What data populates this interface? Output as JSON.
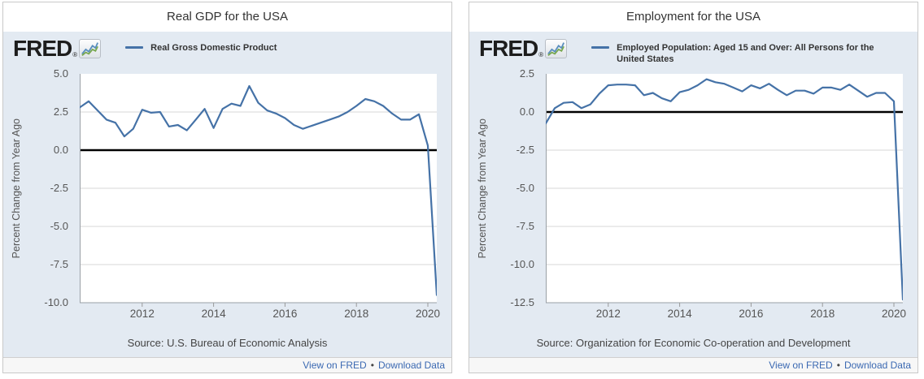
{
  "branding": {
    "logo_text": "FRED",
    "reg_mark": "®"
  },
  "footer": {
    "view_link": "View on FRED",
    "separator": "•",
    "download_link": "Download Data"
  },
  "chart_data": [
    {
      "type": "line",
      "title": "Real GDP for the USA",
      "legend": "Real Gross Domestic Product",
      "ylabel": "Percent Change from Year Ago",
      "source": "Source: U.S. Bureau of Economic Analysis",
      "line_color": "#4572a7",
      "zero_line_color": "#000000",
      "plot_bg": "#ffffff",
      "region_bg": "#e3eaf2",
      "grid": true,
      "legend_position": "top-left",
      "ylim": [
        -10,
        5
      ],
      "y_ticks": [
        5.0,
        2.5,
        0.0,
        -2.5,
        -5.0,
        -7.5,
        -10.0
      ],
      "x_ticks": [
        2012,
        2014,
        2016,
        2018,
        2020
      ],
      "x_range": [
        2010.25,
        2020.25
      ],
      "frequency": "quarterly",
      "period_start": "2010 Q2",
      "period_end": "2020 Q2",
      "values": [
        2.8,
        3.2,
        2.6,
        2.0,
        1.8,
        0.9,
        1.4,
        2.65,
        2.45,
        2.5,
        1.55,
        1.65,
        1.3,
        2.0,
        2.7,
        1.45,
        2.7,
        3.05,
        2.9,
        4.2,
        3.1,
        2.6,
        2.4,
        2.1,
        1.65,
        1.4,
        1.6,
        1.8,
        2.0,
        2.2,
        2.5,
        2.9,
        3.35,
        3.2,
        2.9,
        2.4,
        2.0,
        2.0,
        2.35,
        0.3,
        -9.5
      ]
    },
    {
      "type": "line",
      "title": "Employment for the USA",
      "legend": "Employed Population: Aged 15 and Over: All Persons for the United States",
      "ylabel": "Percent Change from Year Ago",
      "source": "Source: Organization for Economic Co-operation and Development",
      "line_color": "#4572a7",
      "zero_line_color": "#000000",
      "plot_bg": "#ffffff",
      "region_bg": "#e3eaf2",
      "grid": true,
      "legend_position": "top-left",
      "ylim": [
        -12.5,
        2.5
      ],
      "y_ticks": [
        2.5,
        0.0,
        -2.5,
        -5.0,
        -7.5,
        -10.0,
        -12.5
      ],
      "x_ticks": [
        2012,
        2014,
        2016,
        2018,
        2020
      ],
      "x_range": [
        2010.25,
        2020.25
      ],
      "frequency": "quarterly",
      "period_start": "2010 Q2",
      "period_end": "2020 Q2",
      "values": [
        -0.75,
        0.25,
        0.6,
        0.65,
        0.25,
        0.5,
        1.2,
        1.75,
        1.8,
        1.8,
        1.75,
        1.1,
        1.25,
        0.9,
        0.7,
        1.3,
        1.45,
        1.75,
        2.15,
        1.95,
        1.85,
        1.6,
        1.35,
        1.75,
        1.55,
        1.85,
        1.45,
        1.1,
        1.4,
        1.4,
        1.2,
        1.6,
        1.6,
        1.45,
        1.8,
        1.4,
        1.0,
        1.25,
        1.25,
        0.7,
        -12.3
      ]
    }
  ]
}
